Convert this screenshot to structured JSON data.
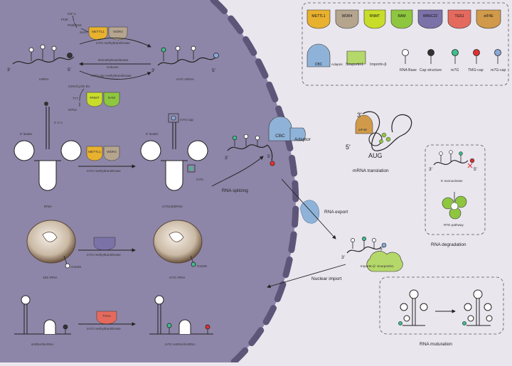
{
  "colors": {
    "nucleus": "#8d86a8",
    "nucleus_edge": "#5e5678",
    "cytoplasm": "#e9e6ee",
    "mettl1": "#e8b12e",
    "wdr4": "#b5a58f",
    "rnmt": "#c8dc2a",
    "ram": "#8ec63f",
    "wbscc22": "#7b72a8",
    "tgs1": "#e46a5e",
    "eif4e": "#d09a4a",
    "cbc": "#8fb3d8",
    "snurportin": "#b5d86a",
    "m7g": "#3fbf8a",
    "tmg_cap": "#e03030",
    "m7g_cap": "#8aa8d6",
    "cap_structure": "#333333"
  },
  "legend": {
    "enzymes": [
      "METTL1",
      "WDR4",
      "RNMT",
      "RAM",
      "WBSC22",
      "TGS1",
      "eIF4E"
    ],
    "cbc": "CBC",
    "adaptor": "Adaptor",
    "snurportin": "Snuportin1",
    "importin": "Importin-β",
    "markers": [
      "RNA Base",
      "Cap structure",
      "m7G",
      "TMG-cap",
      "m7G-cap"
    ]
  },
  "mrna_section": {
    "kinases": [
      "IGF-1",
      "PI3K",
      "PKB/RSK",
      "Ser27"
    ],
    "cdk": "CDK/Cyclin B1",
    "t77": "T77",
    "kpn2": "KPN2",
    "mettl1": "METTL1",
    "wdr4": "WDR4",
    "rnmt": "RNMT",
    "ram": "RAM",
    "rxn_forward": "m7G methyltransferase",
    "rxn_reverse_1": "Demethyltransferase",
    "rxn_reverse_2": "Unkown",
    "rxn_cap": "m7G-cap methyltransferase",
    "left_label": "mRNA",
    "right_label": "m7G mRNA",
    "three_prime": "3'",
    "five_prime": "5'"
  },
  "trna_section": {
    "five_leader_left": "5' leader",
    "five_leader_right": "5' leader",
    "cca": "C C A",
    "mettl1": "METTL1",
    "wdr4": "WDR4",
    "rxn": "m7G methyltransferase",
    "left_label": "tRNA",
    "right_label": "m7G(46)tRNA",
    "m7g_cap": "m7G-cap",
    "m7g_label": "m7G"
  },
  "rrna_section": {
    "rxn": "m7G methyltransferase",
    "left_label": "18S rRNA",
    "right_label": "m7G rRNA",
    "g_left": "G1639",
    "g_right": "G1639"
  },
  "snrna_section": {
    "tgs1": "TGS1",
    "rxn": "m7G methyltransferase",
    "left_label": "snRNA/lncRNA",
    "right_label": "m7G snRNA/lncRNA"
  },
  "splicing": {
    "cbc": "CBC",
    "adaptor": "Adaptor",
    "label": "RNA splicing",
    "three_prime": "3'",
    "five_prime": "5'"
  },
  "export": {
    "label": "RNA export"
  },
  "import_complex": {
    "importin": "Importin-β",
    "snurportin": "Snurportin1",
    "three_prime": "3'",
    "five_prime": "5'"
  },
  "nuclear_import": {
    "label": "Nuclear import"
  },
  "translation": {
    "eif4e": "eIF4E",
    "aug": "AUG",
    "label": "mRNA translation",
    "three_prime": "3'",
    "five_prime": "5'"
  },
  "degradation": {
    "exonuclease": "5' exonuclease",
    "rtd": "RTD pathway",
    "label": "RNA degradation",
    "three_prime": "3'",
    "five_prime": "5'"
  },
  "maturation": {
    "label": "RNA muturation"
  }
}
